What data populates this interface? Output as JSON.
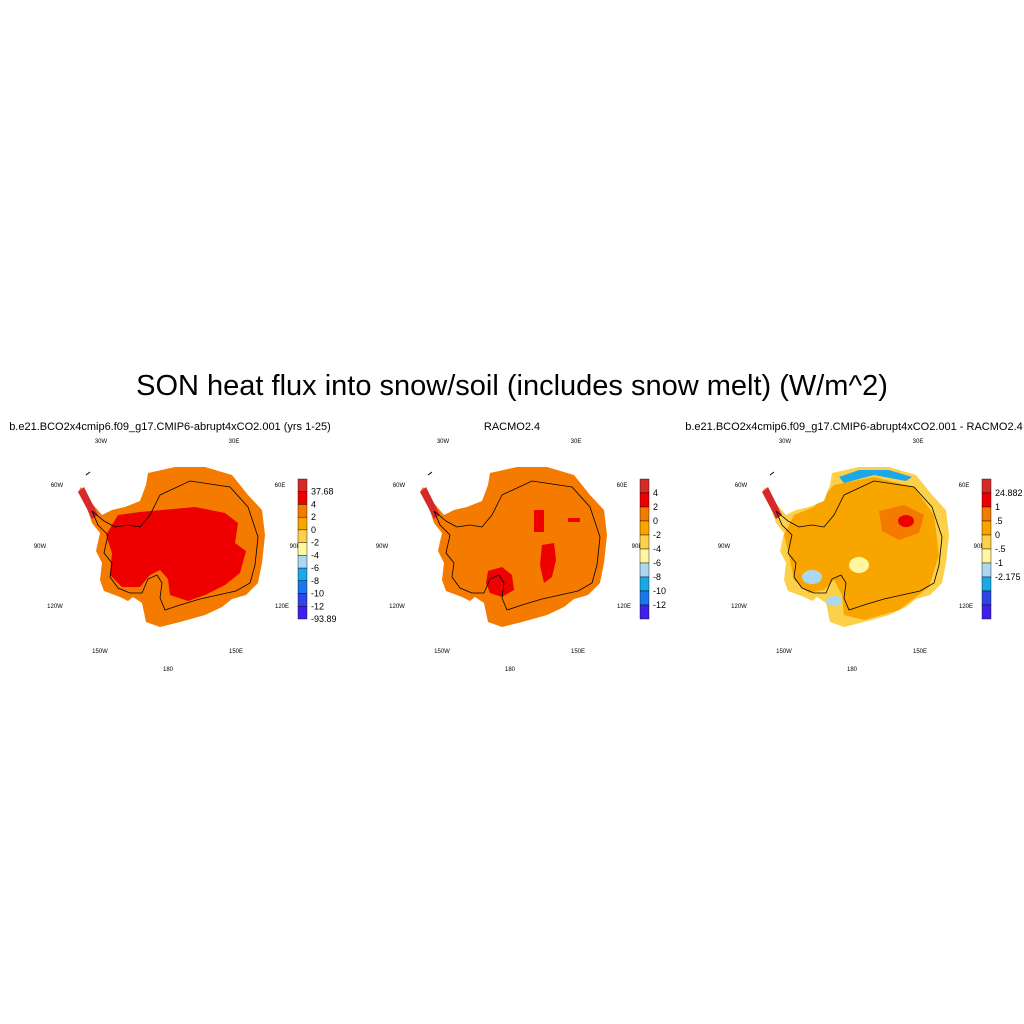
{
  "title": "SON heat flux into snow/soil (includes snow melt) (W/m^2)",
  "lon_labels": [
    "30W",
    "30E",
    "60W",
    "60E",
    "90W",
    "90E",
    "120W",
    "120E",
    "150W",
    "150E",
    "180"
  ],
  "panels": [
    {
      "title": "b.e21.BCO2x4cmip6.f09_g17.CMIP6-abrupt4xCO2.001 (yrs 1-25)",
      "colorbar": {
        "labels": [
          "37.68",
          "4",
          "2",
          "0",
          "-2",
          "-4",
          "-6",
          "-8",
          "-10",
          "-12",
          "-93.89"
        ],
        "colors": [
          "#d62a2a",
          "#ee0000",
          "#f57a00",
          "#f9a500",
          "#fdd04a",
          "#fff6a0",
          "#aad8f0",
          "#1aa8e8",
          "#1a78ea",
          "#2e46e6",
          "#4020e8"
        ]
      }
    },
    {
      "title": "RACMO2.4",
      "colorbar": {
        "labels": [
          "4",
          "2",
          "0",
          "-2",
          "-4",
          "-6",
          "-8",
          "-10",
          "-12"
        ],
        "colors": [
          "#d62a2a",
          "#ee0000",
          "#f57a00",
          "#f9a500",
          "#fdd04a",
          "#fff6a0",
          "#aad8f0",
          "#1aa8e8",
          "#1a78ea",
          "#4020e8"
        ]
      }
    },
    {
      "title": "b.e21.BCO2x4cmip6.f09_g17.CMIP6-abrupt4xCO2.001 - RACMO2.4",
      "colorbar": {
        "labels": [
          "24.882",
          "1",
          ".5",
          "0",
          "-.5",
          "-1",
          "-2.175"
        ],
        "colors": [
          "#d62a2a",
          "#ee0000",
          "#f57a00",
          "#f9a500",
          "#fdd04a",
          "#fff6a0",
          "#aad8f0",
          "#1aa8e8",
          "#2e46e6",
          "#4020e8"
        ]
      }
    }
  ]
}
